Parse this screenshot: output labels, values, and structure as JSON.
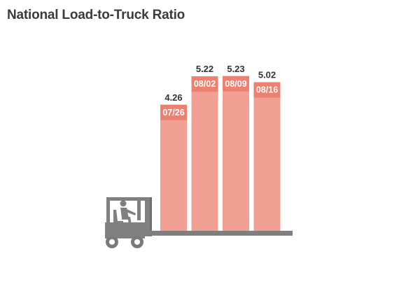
{
  "header": {
    "title": "National Load-to-Truck Ratio"
  },
  "colors": {
    "bar": "#f2a093",
    "bar_band": "#ee8070",
    "forklift": "#808080",
    "title": "#3b3b3b"
  },
  "icons": {
    "forklift": "forklift-icon"
  },
  "chart_data": {
    "type": "bar",
    "title": "National Load-to-Truck Ratio",
    "categories": [
      "07/26",
      "08/02",
      "08/09",
      "08/16"
    ],
    "values": [
      4.26,
      5.22,
      5.23,
      5.02
    ],
    "value_labels": [
      "4.26",
      "5.22",
      "5.23",
      "5.02"
    ],
    "xlabel": "",
    "ylabel": "",
    "grid": false,
    "legend": "none"
  }
}
